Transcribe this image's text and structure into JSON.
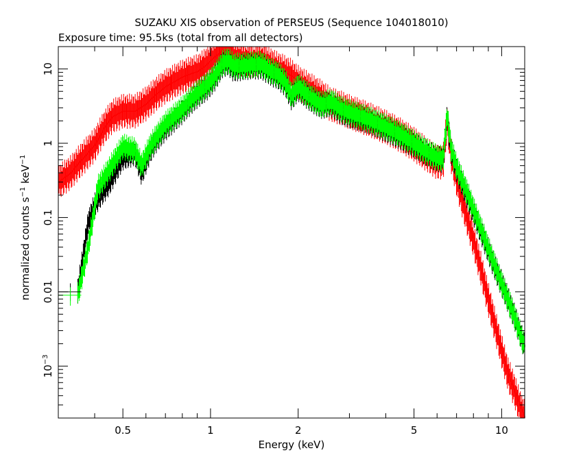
{
  "chart_data": {
    "type": "line",
    "title": "SUZAKU XIS observation of PERSEUS (Sequence 104018010)",
    "subtitle": "Exposure time: 95.5ks (total from all detectors)",
    "xlabel": "Energy (keV)",
    "ylabel": "normalized counts s",
    "ylabel_sup1": "−1",
    "ylabel_mid": " keV",
    "ylabel_sup2": "−1",
    "xscale": "log",
    "yscale": "log",
    "xlim": [
      0.3,
      12.0
    ],
    "ylim": [
      0.0002,
      20
    ],
    "grid": false,
    "x_ticks": [
      {
        "v": 0.5,
        "label": "0.5"
      },
      {
        "v": 1,
        "label": "1"
      },
      {
        "v": 2,
        "label": "2"
      },
      {
        "v": 5,
        "label": "5"
      },
      {
        "v": 10,
        "label": "10"
      }
    ],
    "x_minor_ticks": [
      0.3,
      0.4,
      0.6,
      0.7,
      0.8,
      0.9,
      3,
      4,
      6,
      7,
      8,
      9
    ],
    "y_ticks": [
      {
        "v": 10,
        "label": "10"
      },
      {
        "v": 1,
        "label": "1"
      },
      {
        "v": 0.1,
        "label": "0.1"
      },
      {
        "v": 0.01,
        "label": "0.01"
      },
      {
        "v": 0.001,
        "label": "10",
        "sup": "−3"
      }
    ],
    "series": [
      {
        "color": "#ff0000",
        "x": [
          0.3,
          0.33,
          0.36,
          0.4,
          0.43,
          0.46,
          0.5,
          0.55,
          0.6,
          0.65,
          0.7,
          0.75,
          0.8,
          0.85,
          0.9,
          0.95,
          1.0,
          1.05,
          1.1,
          1.15,
          1.2,
          1.3,
          1.4,
          1.5,
          1.6,
          1.7,
          1.8,
          1.9,
          2.0,
          2.2,
          2.4,
          2.6,
          2.8,
          3.0,
          3.5,
          4.0,
          4.5,
          5.0,
          5.5,
          6.0,
          6.3,
          6.5,
          6.7,
          7.0,
          7.5,
          8.0,
          8.5,
          9.0,
          9.5,
          10.0,
          10.5,
          11.0,
          11.5,
          12.0
        ],
        "y": [
          0.3,
          0.4,
          0.6,
          0.95,
          1.6,
          2.3,
          2.7,
          2.7,
          3.4,
          4.6,
          5.8,
          6.8,
          7.8,
          8.6,
          9.2,
          10.8,
          13.0,
          15.5,
          18.0,
          16.5,
          14.5,
          13.5,
          13.0,
          13.5,
          11.5,
          10.0,
          9.0,
          8.0,
          6.6,
          5.2,
          4.2,
          3.3,
          3.0,
          2.65,
          2.1,
          1.65,
          1.28,
          0.97,
          0.72,
          0.55,
          0.56,
          2.0,
          0.7,
          0.33,
          0.12,
          0.05,
          0.02,
          0.008,
          0.0035,
          0.0016,
          0.0008,
          0.0005,
          0.0003,
          0.0002
        ],
        "err": 0.17
      },
      {
        "color": "#000000",
        "x": [
          0.35,
          0.38,
          0.41,
          0.45,
          0.5,
          0.55,
          0.58,
          0.62,
          0.65,
          0.7,
          0.75,
          0.8,
          0.85,
          0.9,
          0.95,
          1.0,
          1.05,
          1.1,
          1.15,
          1.2,
          1.3,
          1.4,
          1.5,
          1.6,
          1.7,
          1.8,
          1.9,
          2.0,
          2.2,
          2.4,
          2.6,
          2.8,
          3.0,
          3.5,
          4.0,
          4.5,
          5.0,
          5.5,
          6.0,
          6.3,
          6.5,
          6.7,
          7.0,
          7.5,
          8.0,
          8.5,
          9.0,
          9.5,
          10.0,
          10.5,
          11.0,
          11.5,
          12.0
        ],
        "y": [
          0.01,
          0.085,
          0.18,
          0.3,
          0.65,
          0.75,
          0.4,
          0.8,
          1.1,
          1.6,
          2.1,
          2.7,
          3.5,
          4.4,
          5.2,
          6.3,
          8.2,
          11.5,
          12.2,
          10.0,
          10.6,
          11.0,
          10.8,
          9.0,
          8.0,
          6.5,
          4.1,
          5.5,
          4.0,
          3.2,
          3.4,
          2.7,
          2.4,
          2.0,
          1.55,
          1.22,
          0.95,
          0.75,
          0.62,
          0.6,
          2.3,
          0.8,
          0.45,
          0.23,
          0.12,
          0.065,
          0.036,
          0.021,
          0.013,
          0.008,
          0.005,
          0.003,
          0.0018
        ],
        "err": 0.13
      },
      {
        "color": "#00ff00",
        "x": [
          0.35,
          0.38,
          0.41,
          0.45,
          0.5,
          0.55,
          0.58,
          0.62,
          0.65,
          0.7,
          0.75,
          0.8,
          0.85,
          0.9,
          0.95,
          1.0,
          1.05,
          1.1,
          1.15,
          1.2,
          1.3,
          1.4,
          1.5,
          1.6,
          1.7,
          1.8,
          1.9,
          2.0,
          2.2,
          2.4,
          2.6,
          2.8,
          3.0,
          3.5,
          4.0,
          4.5,
          5.0,
          5.5,
          6.0,
          6.3,
          6.5,
          6.7,
          7.0,
          7.5,
          8.0,
          8.5,
          9.0,
          9.5,
          10.0,
          10.5,
          11.0,
          11.5,
          12.0
        ],
        "y": [
          0.009,
          0.04,
          0.25,
          0.45,
          0.9,
          0.8,
          0.5,
          0.9,
          1.2,
          1.8,
          2.3,
          2.9,
          3.8,
          4.7,
          5.6,
          6.8,
          8.8,
          12.0,
          13.0,
          11.0,
          11.0,
          11.5,
          11.5,
          9.5,
          8.5,
          6.8,
          4.4,
          5.8,
          4.2,
          3.3,
          3.6,
          2.9,
          2.6,
          2.1,
          1.65,
          1.3,
          1.0,
          0.78,
          0.64,
          0.62,
          2.4,
          0.85,
          0.48,
          0.25,
          0.13,
          0.07,
          0.038,
          0.022,
          0.013,
          0.008,
          0.005,
          0.003,
          0.0018
        ],
        "err": 0.13
      }
    ],
    "isolated_points": [
      {
        "color": "#000000",
        "x": 0.33,
        "y": 0.01,
        "x_range": [
          0.3,
          0.36
        ],
        "y_range": [
          0.0075,
          0.013
        ]
      },
      {
        "color": "#00ff00",
        "x": 0.33,
        "y": 0.009,
        "x_range": [
          0.3,
          0.36
        ],
        "y_range": [
          0.0065,
          0.0115
        ]
      }
    ]
  }
}
